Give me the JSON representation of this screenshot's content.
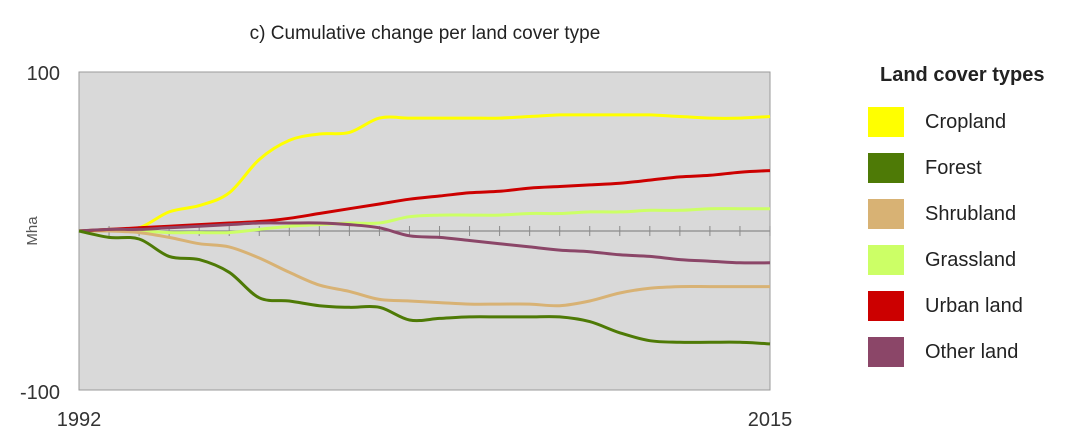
{
  "chart_data": {
    "type": "line",
    "title": "c) Cumulative  change per land  cover type",
    "xlabel": "",
    "ylabel": "Mha",
    "xlim": [
      1992,
      2015
    ],
    "ylim": [
      -100,
      100
    ],
    "x_tick_labels": [
      "1992",
      "2015"
    ],
    "y_tick_labels": [
      "100",
      "-100"
    ],
    "background_color": "#d9d9d9",
    "grid": false,
    "zero_axis_minor_ticks_per_year": true,
    "legend": {
      "title": "Land cover types",
      "placement": "right"
    },
    "series": [
      {
        "name": "Cropland",
        "color": "#ffff00",
        "x": [
          1992,
          1993,
          1994,
          1995,
          1996,
          1997,
          1998,
          1999,
          2000,
          2001,
          2002,
          2003,
          2004,
          2005,
          2006,
          2007,
          2008,
          2009,
          2010,
          2011,
          2012,
          2013,
          2014,
          2015
        ],
        "y": [
          0,
          1,
          2,
          12,
          16,
          24,
          45,
          57,
          61,
          62,
          71,
          71,
          71,
          71,
          71,
          72,
          73,
          73,
          73,
          73,
          72,
          71,
          71,
          72
        ]
      },
      {
        "name": "Forest",
        "color": "#4e7a06",
        "x": [
          1992,
          1993,
          1994,
          1995,
          1996,
          1997,
          1998,
          1999,
          2000,
          2001,
          2002,
          2003,
          2004,
          2005,
          2006,
          2007,
          2008,
          2009,
          2010,
          2011,
          2012,
          2013,
          2014,
          2015
        ],
        "y": [
          0,
          -4,
          -5,
          -16,
          -18,
          -26,
          -42,
          -44,
          -47,
          -48,
          -48,
          -56,
          -55,
          -54,
          -54,
          -54,
          -54,
          -57,
          -64,
          -69,
          -70,
          -70,
          -70,
          -71
        ]
      },
      {
        "name": "Shrubland",
        "color": "#d8b274",
        "x": [
          1992,
          1993,
          1994,
          1995,
          1996,
          1997,
          1998,
          1999,
          2000,
          2001,
          2002,
          2003,
          2004,
          2005,
          2006,
          2007,
          2008,
          2009,
          2010,
          2011,
          2012,
          2013,
          2014,
          2015
        ],
        "y": [
          0,
          0,
          -1,
          -4,
          -8,
          -10,
          -17,
          -26,
          -34,
          -38,
          -43,
          -44,
          -45,
          -46,
          -46,
          -46,
          -47,
          -44,
          -39,
          -36,
          -35,
          -35,
          -35,
          -35
        ]
      },
      {
        "name": "Grassland",
        "color": "#ccff66",
        "x": [
          1992,
          1993,
          1994,
          1995,
          1996,
          1997,
          1998,
          1999,
          2000,
          2001,
          2002,
          2003,
          2004,
          2005,
          2006,
          2007,
          2008,
          2009,
          2010,
          2011,
          2012,
          2013,
          2014,
          2015
        ],
        "y": [
          0,
          0,
          0,
          -1,
          -1,
          -1,
          1,
          3,
          4,
          5,
          5,
          9,
          10,
          10,
          10,
          11,
          11,
          12,
          12,
          13,
          13,
          14,
          14,
          14
        ]
      },
      {
        "name": "Urban land",
        "color": "#cc0000",
        "x": [
          1992,
          1993,
          1994,
          1995,
          1996,
          1997,
          1998,
          1999,
          2000,
          2001,
          2002,
          2003,
          2004,
          2005,
          2006,
          2007,
          2008,
          2009,
          2010,
          2011,
          2012,
          2013,
          2014,
          2015
        ],
        "y": [
          0,
          1,
          2,
          3,
          4,
          5,
          6,
          8,
          11,
          14,
          17,
          20,
          22,
          24,
          25,
          27,
          28,
          29,
          30,
          32,
          34,
          35,
          37,
          38
        ]
      },
      {
        "name": "Other land",
        "color": "#8b4668",
        "x": [
          1992,
          1993,
          1994,
          1995,
          1996,
          1997,
          1998,
          1999,
          2000,
          2001,
          2002,
          2003,
          2004,
          2005,
          2006,
          2007,
          2008,
          2009,
          2010,
          2011,
          2012,
          2013,
          2014,
          2015
        ],
        "y": [
          0,
          1,
          1,
          2,
          3,
          4,
          5,
          5,
          5,
          4,
          2,
          -3,
          -4,
          -6,
          -8,
          -10,
          -12,
          -13,
          -15,
          -16,
          -18,
          -19,
          -20,
          -20
        ]
      }
    ]
  }
}
